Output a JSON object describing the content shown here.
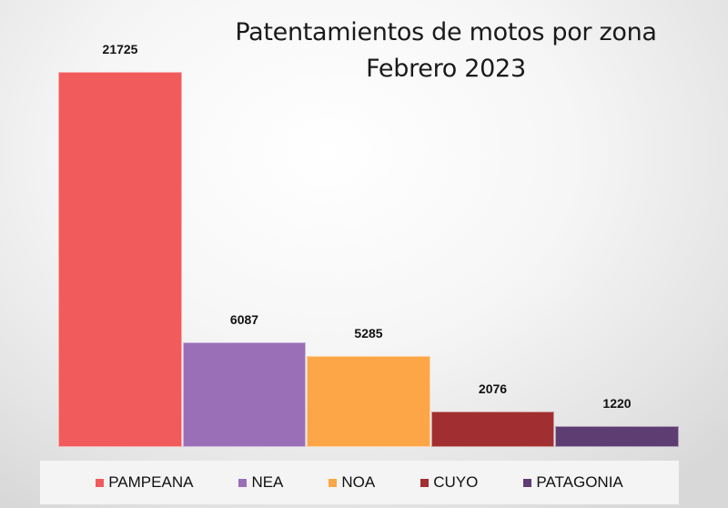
{
  "chart_data": {
    "type": "bar",
    "title": "Patentamientos de motos por zona",
    "subtitle": "Febrero 2023",
    "categories": [
      "PAMPEANA",
      "NEA",
      "NOA",
      "CUYO",
      "PATAGONIA"
    ],
    "values": [
      21725,
      6087,
      5285,
      2076,
      1220
    ],
    "colors": [
      "#f15b5b",
      "#9a6fb8",
      "#fca647",
      "#a12f31",
      "#5e3d72"
    ],
    "xlabel": "",
    "ylabel": "",
    "ylim": [
      0,
      22000
    ],
    "grid": false,
    "legend_position": "bottom",
    "data_labels": true
  },
  "title_line1": "Patentamientos de motos por zona",
  "title_line2": "Febrero 2023",
  "legend": [
    {
      "label": "PAMPEANA"
    },
    {
      "label": "NEA"
    },
    {
      "label": "NOA"
    },
    {
      "label": "CUYO"
    },
    {
      "label": "PATAGONIA"
    }
  ],
  "labels": [
    "21725",
    "6087",
    "5285",
    "2076",
    "1220"
  ]
}
